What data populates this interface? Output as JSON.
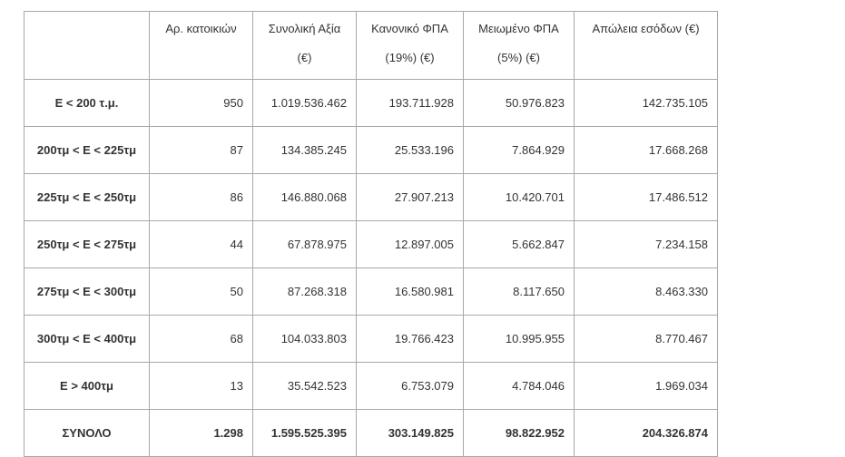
{
  "table": {
    "headers": [
      [
        "Αρ. κατοικιών"
      ],
      [
        "Συνολική Αξία",
        "(€)"
      ],
      [
        "Κανονικό ΦΠΑ",
        "(19%)  (€)"
      ],
      [
        "Μειωμένο ΦΠΑ",
        "(5%)  (€)"
      ],
      [
        "Απώλεια εσόδων (€)"
      ]
    ],
    "rows": [
      {
        "label": "Ε < 200 τ.μ.",
        "values": [
          "950",
          "1.019.536.462",
          "193.711.928",
          "50.976.823",
          "142.735.105"
        ]
      },
      {
        "label": "200τμ < Ε < 225τμ",
        "values": [
          "87",
          "134.385.245",
          "25.533.196",
          "7.864.929",
          "17.668.268"
        ]
      },
      {
        "label": "225τμ < Ε < 250τμ",
        "values": [
          "86",
          "146.880.068",
          "27.907.213",
          "10.420.701",
          "17.486.512"
        ]
      },
      {
        "label": "250τμ < Ε < 275τμ",
        "values": [
          "44",
          "67.878.975",
          "12.897.005",
          "5.662.847",
          "7.234.158"
        ]
      },
      {
        "label": "275τμ < Ε < 300τμ",
        "values": [
          "50",
          "87.268.318",
          "16.580.981",
          "8.117.650",
          "8.463.330"
        ]
      },
      {
        "label": "300τμ < Ε < 400τμ",
        "values": [
          "68",
          "104.033.803",
          "19.766.423",
          "10.995.955",
          "8.770.467"
        ]
      },
      {
        "label": "Ε > 400τμ",
        "values": [
          "13",
          "35.542.523",
          "6.753.079",
          "4.784.046",
          "1.969.034"
        ]
      }
    ],
    "total": {
      "label": "ΣΥΝΟΛΟ",
      "values": [
        "1.298",
        "1.595.525.395",
        "303.149.825",
        "98.822.952",
        "204.326.874"
      ]
    }
  }
}
